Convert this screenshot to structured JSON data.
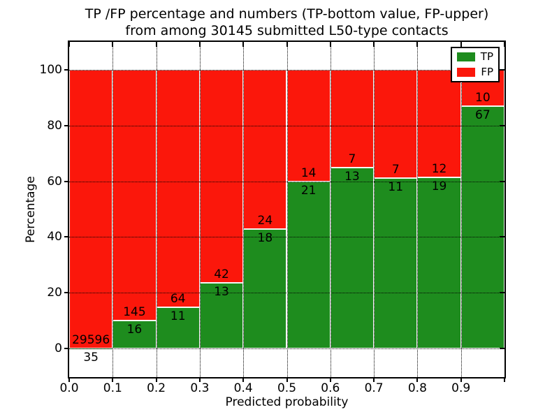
{
  "title": {
    "line1": "TP /FP percentage and numbers (TP-bottom value, FP-upper)",
    "line2": "from among 30145 submitted L50-type contacts"
  },
  "axes": {
    "xlabel": "Predicted probability",
    "ylabel": "Percentage",
    "x_tick_labels": [
      "0.0",
      "0.1",
      "0.2",
      "0.3",
      "0.4",
      "0.5",
      "0.6",
      "0.7",
      "0.8",
      "0.9"
    ],
    "y_tick_labels": [
      "0",
      "20",
      "40",
      "60",
      "80",
      "100"
    ],
    "y_ticks": [
      0,
      20,
      40,
      60,
      80,
      100
    ],
    "xlim": [
      0.0,
      1.0
    ],
    "ylim": [
      -10.5,
      110.5
    ],
    "grid": "dotted black, both axes, drawn over bars"
  },
  "legend": {
    "position": "upper right",
    "items": [
      {
        "label": "TP",
        "color": "#1e8c1e"
      },
      {
        "label": "FP",
        "color": "#fb170b"
      }
    ]
  },
  "chart_data": {
    "type": "bar",
    "stacked": true,
    "normalized_to_percent": 100,
    "bin_width": 0.1,
    "bin_starts": [
      0.0,
      0.1,
      0.2,
      0.3,
      0.4,
      0.5,
      0.6,
      0.7,
      0.8,
      0.9
    ],
    "series": [
      {
        "name": "TP",
        "color": "#1e8c1e",
        "counts": [
          35,
          16,
          11,
          13,
          18,
          21,
          13,
          11,
          19,
          67
        ]
      },
      {
        "name": "FP",
        "color": "#fb170b",
        "counts": [
          29596,
          145,
          64,
          42,
          24,
          14,
          7,
          7,
          12,
          10
        ]
      }
    ],
    "tp_percent": [
      0.12,
      9.94,
      14.67,
      23.64,
      42.86,
      60.0,
      65.0,
      61.11,
      61.29,
      87.01
    ],
    "total_contacts": 30145,
    "annotation_rule": "FP count printed just above TP/FP boundary, TP count just below it, centered on each bar"
  }
}
